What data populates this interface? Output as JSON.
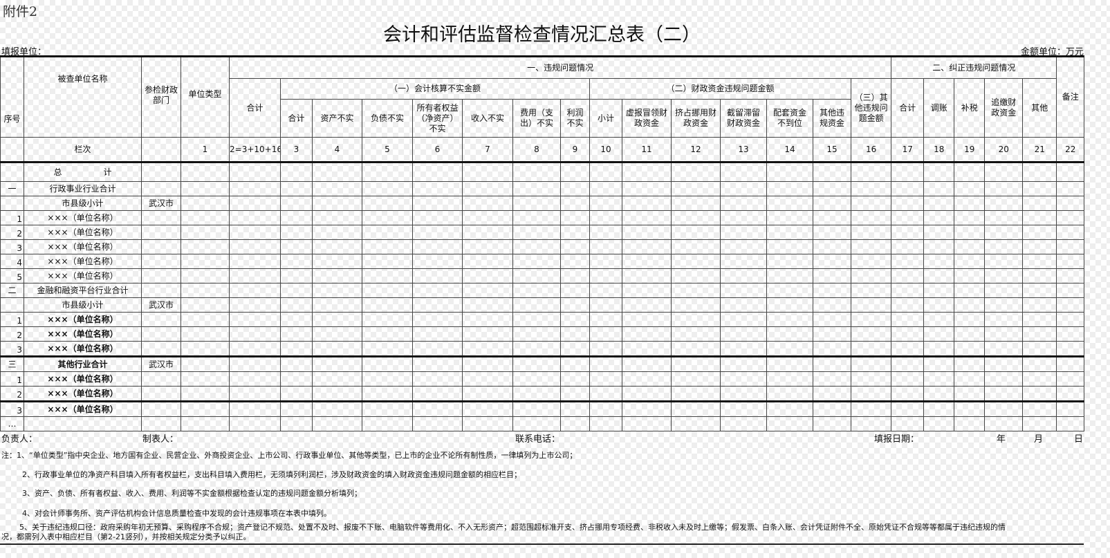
{
  "attachment": "附件2",
  "title": "会计和评估监督检查情况汇总表（二）",
  "unit_label": "填报单位：",
  "money_unit": "金额单位：万元",
  "header": {
    "seq": "序号",
    "name": "被查单位名称",
    "dept": "参检财政部门",
    "type": "单位类型",
    "group1": "一、违规问题情况",
    "total": "合计",
    "sub1": "（一）会计核算不实金额",
    "sub1_cols": [
      "合计",
      "资产不实",
      "负债不实",
      "所有者权益（净资产）不实",
      "收入不实",
      "费用（支出）不实",
      "利润不实"
    ],
    "sub2": "（二）财政资金违规问题金额",
    "sub2_cols": [
      "小计",
      "虚报冒领财政资金",
      "挤占挪用财政资金",
      "截留滞留财政资金",
      "配套资金不到位",
      "其他违规资金"
    ],
    "sub3": "（三）其他违规问题金额",
    "group2": "二、纠正违规问题情况",
    "group2_cols": [
      "合计",
      "调账",
      "补税",
      "追缴财政资金",
      "其他"
    ],
    "remark": "备注"
  },
  "column_numbers": {
    "label": "栏次",
    "values": [
      "1",
      "2=3+10+16",
      "3",
      "4",
      "5",
      "6",
      "7",
      "8",
      "9",
      "10",
      "11",
      "12",
      "13",
      "14",
      "15",
      "16",
      "17",
      "18",
      "19",
      "20",
      "21",
      "22"
    ]
  },
  "rows": [
    {
      "seq": "",
      "name": "总　　　　　计",
      "dept": "",
      "style": "total"
    },
    {
      "seq": "一",
      "name": "行政事业行业合计",
      "dept": "",
      "style": "sec"
    },
    {
      "seq": "",
      "name": "市县级小计",
      "dept": "武汉市",
      "style": ""
    },
    {
      "seq": "1",
      "name": "×××（单位名称）",
      "dept": "",
      "style": "num"
    },
    {
      "seq": "2",
      "name": "×××（单位名称）",
      "dept": "",
      "style": "num"
    },
    {
      "seq": "3",
      "name": "×××（单位名称）",
      "dept": "",
      "style": "num"
    },
    {
      "seq": "4",
      "name": "×××（单位名称）",
      "dept": "",
      "style": "num"
    },
    {
      "seq": "5",
      "name": "×××（单位名称）",
      "dept": "",
      "style": "num"
    },
    {
      "seq": "二",
      "name": "金融和融资平台行业合计",
      "dept": "",
      "style": "sec"
    },
    {
      "seq": "",
      "name": "市县级小计",
      "dept": "武汉市",
      "style": ""
    },
    {
      "seq": "1",
      "name": "×××（单位名称）",
      "dept": "",
      "style": "num bold"
    },
    {
      "seq": "2",
      "name": "×××（单位名称）",
      "dept": "",
      "style": "num bold"
    },
    {
      "seq": "3",
      "name": "×××（单位名称）",
      "dept": "",
      "style": "num bold"
    },
    {
      "seq": "三",
      "name": "其他行业合计",
      "dept": "武汉市",
      "style": "sec bold"
    },
    {
      "seq": "1",
      "name": "×××（单位名称）",
      "dept": "",
      "style": "num bold"
    },
    {
      "seq": "2",
      "name": "×××（单位名称）",
      "dept": "",
      "style": "num bold"
    },
    {
      "seq": "3",
      "name": "×××（单位名称）",
      "dept": "",
      "style": "num bold"
    },
    {
      "seq": "…",
      "name": "",
      "dept": "",
      "style": "sec"
    }
  ],
  "footer": {
    "leader": "负责人：",
    "preparer": "制表人：",
    "phone": "联系电话：",
    "date": "填报日期：",
    "year": "年",
    "month": "月",
    "day": "日"
  },
  "notes": [
    "注：1、“单位类型”指中央企业、地方国有企业、民营企业、外商投资企业、上市公司、行政事业单位、其他等类型，已上市的企业不论所有制性质，一律填列为上市公司；",
    "2、行政事业单位的净资产科目填入所有者权益栏，支出科目填入费用栏，无须填列利润栏，涉及财政资金的填入财政资金违规问题金额的相应栏目；",
    "3、资产、负债、所有者权益、收入、费用、利润等不实金额根据检查认定的违规问题金额分析填列；",
    "4、对会计师事务所、资产评估机构会计信息质量检查中发现的会计违规事项在本表中填列。",
    "5、关于违纪违规口径：政府采购年初无预算、采购程序不合规；资产登记不规范、处置不及时、报废不下账、电脑软件等费用化、不入无形资产；超范围超标准开支、挤占挪用专项经费、非税收入未及时上缴等；假发票、白条入账、会计凭证附件不全、原始凭证不合规等等都属于违纪违规的情",
    "况，都需列入表中相应栏目（第2-21竖列），并按相关规定分类予以纠正。"
  ]
}
